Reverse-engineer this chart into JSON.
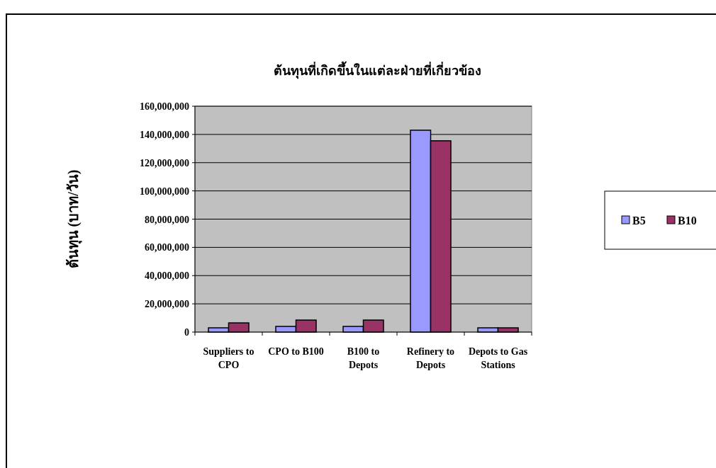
{
  "chart_data": {
    "type": "bar",
    "title": "ต้นทุนที่เกิดขึ้นในแต่ละฝ่ายที่เกี่ยวข้อง",
    "ylabel": "ต้นทุน (บาท/วัน)",
    "categories": [
      "Suppliers to CPO",
      "CPO to B100",
      "B100 to Depots",
      "Refinery to Depots",
      "Depots to Gas Stations"
    ],
    "series": [
      {
        "name": "B5",
        "color": "#9999ff",
        "values": [
          3000000,
          4000000,
          4000000,
          143000000,
          3000000
        ]
      },
      {
        "name": "B10",
        "color": "#993366",
        "values": [
          6500000,
          8500000,
          8500000,
          135500000,
          3000000
        ]
      }
    ],
    "ylim": [
      0,
      160000000
    ],
    "yticks": [
      {
        "value": 0,
        "label": "0"
      },
      {
        "value": 20000000,
        "label": "20,000,000"
      },
      {
        "value": 40000000,
        "label": "40,000,000"
      },
      {
        "value": 60000000,
        "label": "60,000,000"
      },
      {
        "value": 80000000,
        "label": "80,000,000"
      },
      {
        "value": 100000000,
        "label": "100,000,000"
      },
      {
        "value": 120000000,
        "label": "120,000,000"
      },
      {
        "value": 140000000,
        "label": "140,000,000"
      },
      {
        "value": 160000000,
        "label": "160,000,000"
      }
    ],
    "grid": "y",
    "legend": "right"
  }
}
